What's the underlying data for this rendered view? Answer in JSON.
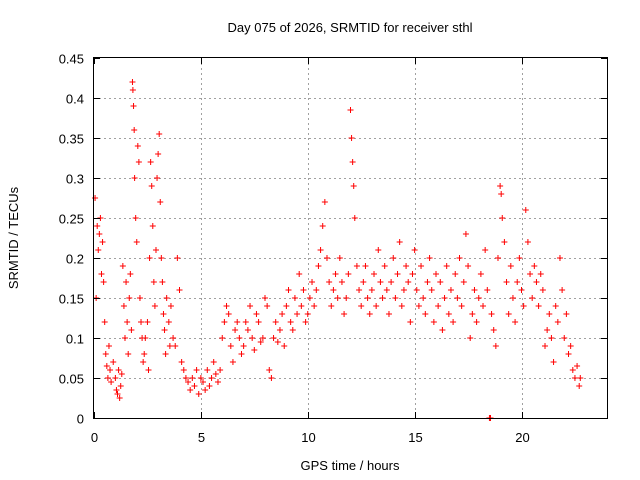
{
  "chart_data": {
    "type": "scatter",
    "title": "Day 075 of 2026, SRMTID for receiver sthl",
    "xlabel": "GPS time / hours",
    "ylabel": "SRMTID / TECUs",
    "xlim": [
      0,
      24
    ],
    "ylim": [
      0,
      0.45
    ],
    "xticks": [
      0,
      5,
      10,
      15,
      20
    ],
    "xtick_labels": [
      "0",
      "5",
      "10",
      "15",
      "20"
    ],
    "yticks": [
      0,
      0.05,
      0.1,
      0.15,
      0.2,
      0.25,
      0.3,
      0.35,
      0.4,
      0.45
    ],
    "ytick_labels": [
      "0",
      "0.05",
      "0.1",
      "0.15",
      "0.2",
      "0.25",
      "0.3",
      "0.35",
      "0.4",
      "0.45"
    ],
    "grid": true,
    "marker": "plus",
    "color": "#ff0000",
    "series": [
      {
        "name": "sthl",
        "points": [
          [
            0.05,
            0.275
          ],
          [
            0.1,
            0.15
          ],
          [
            0.15,
            0.24
          ],
          [
            0.2,
            0.21
          ],
          [
            0.25,
            0.23
          ],
          [
            0.3,
            0.25
          ],
          [
            0.35,
            0.18
          ],
          [
            0.4,
            0.22
          ],
          [
            0.45,
            0.17
          ],
          [
            0.5,
            0.12
          ],
          [
            0.55,
            0.08
          ],
          [
            0.6,
            0.065
          ],
          [
            0.65,
            0.05
          ],
          [
            0.7,
            0.09
          ],
          [
            0.75,
            0.06
          ],
          [
            0.8,
            0.045
          ],
          [
            0.9,
            0.07
          ],
          [
            1.0,
            0.05
          ],
          [
            1.05,
            0.035
          ],
          [
            1.1,
            0.03
          ],
          [
            1.15,
            0.06
          ],
          [
            1.2,
            0.025
          ],
          [
            1.25,
            0.04
          ],
          [
            1.3,
            0.055
          ],
          [
            1.35,
            0.19
          ],
          [
            1.4,
            0.14
          ],
          [
            1.45,
            0.1
          ],
          [
            1.5,
            0.17
          ],
          [
            1.55,
            0.12
          ],
          [
            1.6,
            0.08
          ],
          [
            1.65,
            0.15
          ],
          [
            1.7,
            0.18
          ],
          [
            1.75,
            0.11
          ],
          [
            1.8,
            0.42
          ],
          [
            1.82,
            0.41
          ],
          [
            1.85,
            0.39
          ],
          [
            1.88,
            0.36
          ],
          [
            1.9,
            0.3
          ],
          [
            1.95,
            0.25
          ],
          [
            2.0,
            0.22
          ],
          [
            2.05,
            0.34
          ],
          [
            2.1,
            0.32
          ],
          [
            2.15,
            0.15
          ],
          [
            2.2,
            0.12
          ],
          [
            2.25,
            0.1
          ],
          [
            2.3,
            0.07
          ],
          [
            2.35,
            0.08
          ],
          [
            2.4,
            0.1
          ],
          [
            2.5,
            0.12
          ],
          [
            2.55,
            0.06
          ],
          [
            2.6,
            0.2
          ],
          [
            2.65,
            0.32
          ],
          [
            2.7,
            0.29
          ],
          [
            2.75,
            0.24
          ],
          [
            2.8,
            0.17
          ],
          [
            2.85,
            0.14
          ],
          [
            2.9,
            0.21
          ],
          [
            2.95,
            0.3
          ],
          [
            3.0,
            0.33
          ],
          [
            3.05,
            0.355
          ],
          [
            3.1,
            0.27
          ],
          [
            3.15,
            0.2
          ],
          [
            3.2,
            0.17
          ],
          [
            3.25,
            0.13
          ],
          [
            3.3,
            0.11
          ],
          [
            3.35,
            0.08
          ],
          [
            3.4,
            0.15
          ],
          [
            3.5,
            0.12
          ],
          [
            3.55,
            0.09
          ],
          [
            3.6,
            0.14
          ],
          [
            3.7,
            0.1
          ],
          [
            3.8,
            0.09
          ],
          [
            3.9,
            0.2
          ],
          [
            4.0,
            0.16
          ],
          [
            4.1,
            0.07
          ],
          [
            4.2,
            0.06
          ],
          [
            4.3,
            0.05
          ],
          [
            4.4,
            0.045
          ],
          [
            4.5,
            0.035
          ],
          [
            4.6,
            0.05
          ],
          [
            4.7,
            0.04
          ],
          [
            4.8,
            0.06
          ],
          [
            4.9,
            0.03
          ],
          [
            5.0,
            0.05
          ],
          [
            5.1,
            0.045
          ],
          [
            5.2,
            0.035
          ],
          [
            5.3,
            0.06
          ],
          [
            5.4,
            0.04
          ],
          [
            5.5,
            0.05
          ],
          [
            5.6,
            0.07
          ],
          [
            5.7,
            0.055
          ],
          [
            5.8,
            0.045
          ],
          [
            5.9,
            0.06
          ],
          [
            6.0,
            0.1
          ],
          [
            6.1,
            0.12
          ],
          [
            6.2,
            0.14
          ],
          [
            6.3,
            0.13
          ],
          [
            6.4,
            0.09
          ],
          [
            6.5,
            0.07
          ],
          [
            6.6,
            0.11
          ],
          [
            6.7,
            0.12
          ],
          [
            6.8,
            0.1
          ],
          [
            6.9,
            0.08
          ],
          [
            7.0,
            0.09
          ],
          [
            7.1,
            0.12
          ],
          [
            7.2,
            0.11
          ],
          [
            7.3,
            0.14
          ],
          [
            7.4,
            0.1
          ],
          [
            7.5,
            0.085
          ],
          [
            7.6,
            0.13
          ],
          [
            7.7,
            0.12
          ],
          [
            7.8,
            0.095
          ],
          [
            7.9,
            0.1
          ],
          [
            8.0,
            0.15
          ],
          [
            8.1,
            0.14
          ],
          [
            8.2,
            0.06
          ],
          [
            8.3,
            0.05
          ],
          [
            8.4,
            0.1
          ],
          [
            8.5,
            0.12
          ],
          [
            8.6,
            0.095
          ],
          [
            8.7,
            0.11
          ],
          [
            8.8,
            0.13
          ],
          [
            8.9,
            0.09
          ],
          [
            9.0,
            0.14
          ],
          [
            9.1,
            0.16
          ],
          [
            9.2,
            0.12
          ],
          [
            9.3,
            0.11
          ],
          [
            9.4,
            0.15
          ],
          [
            9.5,
            0.13
          ],
          [
            9.6,
            0.18
          ],
          [
            9.7,
            0.14
          ],
          [
            9.8,
            0.16
          ],
          [
            9.9,
            0.12
          ],
          [
            10.0,
            0.13
          ],
          [
            10.1,
            0.15
          ],
          [
            10.2,
            0.17
          ],
          [
            10.3,
            0.14
          ],
          [
            10.4,
            0.16
          ],
          [
            10.5,
            0.19
          ],
          [
            10.6,
            0.21
          ],
          [
            10.7,
            0.24
          ],
          [
            10.8,
            0.27
          ],
          [
            10.9,
            0.2
          ],
          [
            11.0,
            0.17
          ],
          [
            11.1,
            0.14
          ],
          [
            11.2,
            0.16
          ],
          [
            11.3,
            0.18
          ],
          [
            11.4,
            0.15
          ],
          [
            11.5,
            0.2
          ],
          [
            11.6,
            0.17
          ],
          [
            11.7,
            0.13
          ],
          [
            11.8,
            0.15
          ],
          [
            11.9,
            0.18
          ],
          [
            12.0,
            0.385
          ],
          [
            12.05,
            0.35
          ],
          [
            12.1,
            0.32
          ],
          [
            12.15,
            0.29
          ],
          [
            12.2,
            0.25
          ],
          [
            12.3,
            0.19
          ],
          [
            12.4,
            0.16
          ],
          [
            12.5,
            0.14
          ],
          [
            12.6,
            0.17
          ],
          [
            12.7,
            0.19
          ],
          [
            12.8,
            0.15
          ],
          [
            12.9,
            0.13
          ],
          [
            13.0,
            0.16
          ],
          [
            13.1,
            0.18
          ],
          [
            13.2,
            0.14
          ],
          [
            13.3,
            0.21
          ],
          [
            13.4,
            0.17
          ],
          [
            13.5,
            0.15
          ],
          [
            13.6,
            0.19
          ],
          [
            13.7,
            0.16
          ],
          [
            13.8,
            0.13
          ],
          [
            13.9,
            0.17
          ],
          [
            14.0,
            0.2
          ],
          [
            14.1,
            0.15
          ],
          [
            14.2,
            0.18
          ],
          [
            14.3,
            0.22
          ],
          [
            14.4,
            0.14
          ],
          [
            14.5,
            0.16
          ],
          [
            14.6,
            0.19
          ],
          [
            14.7,
            0.17
          ],
          [
            14.8,
            0.12
          ],
          [
            14.9,
            0.18
          ],
          [
            15.0,
            0.21
          ],
          [
            15.1,
            0.16
          ],
          [
            15.2,
            0.14
          ],
          [
            15.3,
            0.19
          ],
          [
            15.4,
            0.15
          ],
          [
            15.5,
            0.13
          ],
          [
            15.6,
            0.17
          ],
          [
            15.7,
            0.2
          ],
          [
            15.8,
            0.16
          ],
          [
            15.9,
            0.12
          ],
          [
            16.0,
            0.18
          ],
          [
            16.1,
            0.14
          ],
          [
            16.2,
            0.17
          ],
          [
            16.3,
            0.11
          ],
          [
            16.4,
            0.15
          ],
          [
            16.5,
            0.19
          ],
          [
            16.6,
            0.13
          ],
          [
            16.7,
            0.16
          ],
          [
            16.8,
            0.12
          ],
          [
            16.9,
            0.18
          ],
          [
            17.0,
            0.15
          ],
          [
            17.1,
            0.2
          ],
          [
            17.2,
            0.14
          ],
          [
            17.3,
            0.17
          ],
          [
            17.4,
            0.23
          ],
          [
            17.5,
            0.19
          ],
          [
            17.6,
            0.1
          ],
          [
            17.7,
            0.13
          ],
          [
            17.8,
            0.16
          ],
          [
            17.9,
            0.12
          ],
          [
            18.0,
            0.15
          ],
          [
            18.1,
            0.18
          ],
          [
            18.2,
            0.14
          ],
          [
            18.3,
            0.21
          ],
          [
            18.4,
            0.16
          ],
          [
            18.5,
            0.0
          ],
          [
            18.55,
            0.0
          ],
          [
            18.6,
            0.13
          ],
          [
            18.7,
            0.11
          ],
          [
            18.8,
            0.09
          ],
          [
            18.9,
            0.2
          ],
          [
            19.0,
            0.29
          ],
          [
            19.05,
            0.28
          ],
          [
            19.1,
            0.25
          ],
          [
            19.2,
            0.22
          ],
          [
            19.3,
            0.17
          ],
          [
            19.4,
            0.13
          ],
          [
            19.5,
            0.19
          ],
          [
            19.6,
            0.15
          ],
          [
            19.7,
            0.12
          ],
          [
            19.8,
            0.17
          ],
          [
            19.9,
            0.2
          ],
          [
            20.0,
            0.16
          ],
          [
            20.1,
            0.14
          ],
          [
            20.2,
            0.26
          ],
          [
            20.3,
            0.22
          ],
          [
            20.4,
            0.18
          ],
          [
            20.5,
            0.15
          ],
          [
            20.6,
            0.19
          ],
          [
            20.7,
            0.17
          ],
          [
            20.8,
            0.14
          ],
          [
            20.9,
            0.18
          ],
          [
            21.0,
            0.16
          ],
          [
            21.1,
            0.09
          ],
          [
            21.2,
            0.11
          ],
          [
            21.3,
            0.13
          ],
          [
            21.4,
            0.1
          ],
          [
            21.5,
            0.07
          ],
          [
            21.6,
            0.14
          ],
          [
            21.7,
            0.12
          ],
          [
            21.8,
            0.2
          ],
          [
            21.9,
            0.16
          ],
          [
            22.0,
            0.1
          ],
          [
            22.1,
            0.13
          ],
          [
            22.2,
            0.08
          ],
          [
            22.3,
            0.09
          ],
          [
            22.4,
            0.06
          ],
          [
            22.5,
            0.05
          ],
          [
            22.6,
            0.065
          ],
          [
            22.7,
            0.04
          ],
          [
            22.75,
            0.05
          ]
        ]
      }
    ]
  }
}
